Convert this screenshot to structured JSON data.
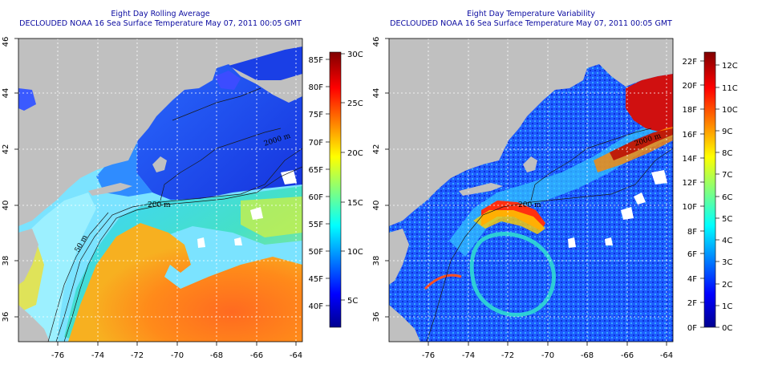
{
  "left_panel": {
    "title_line1": "Eight Day Rolling Average",
    "title_line2": "DECLOUDED NOAA 16 Sea Surface Temperature May 07, 2011 00:05 GMT",
    "x_ticks": [
      "-76",
      "-74",
      "-72",
      "-70",
      "-68",
      "-66",
      "-64"
    ],
    "y_ticks": [
      "36",
      "38",
      "40",
      "42",
      "44",
      "46"
    ],
    "colorbar_f": [
      "40F",
      "45F",
      "50F",
      "55F",
      "60F",
      "65F",
      "70F",
      "75F",
      "80F",
      "85F"
    ],
    "colorbar_c": [
      "5C",
      "10C",
      "15C",
      "20C",
      "25C",
      "30C"
    ],
    "contour_labels": [
      "50 m",
      "200 m",
      "2000 m"
    ]
  },
  "right_panel": {
    "title_line1": "Eight Day Temperature Variability",
    "title_line2": "DECLOUDED NOAA 16 Sea Surface Temperature May 07, 2011 00:05 GMT",
    "x_ticks": [
      "-76",
      "-74",
      "-72",
      "-70",
      "-68",
      "-66",
      "-64"
    ],
    "y_ticks": [
      "36",
      "38",
      "40",
      "42",
      "44",
      "46"
    ],
    "colorbar_f": [
      "0F",
      "2F",
      "4F",
      "6F",
      "8F",
      "10F",
      "12F",
      "14F",
      "16F",
      "18F",
      "20F",
      "22F"
    ],
    "colorbar_c": [
      "0C",
      "1C",
      "2C",
      "3C",
      "4C",
      "5C",
      "6C",
      "7C",
      "8C",
      "9C",
      "10C",
      "11C",
      "12C"
    ],
    "contour_labels": [
      "200 m",
      "2000 m"
    ]
  },
  "colors": {
    "land": "#c0c0c0",
    "title": "#0a0aa0",
    "jet_dark_blue": "#00008f",
    "jet_dark_red": "#800000"
  }
}
